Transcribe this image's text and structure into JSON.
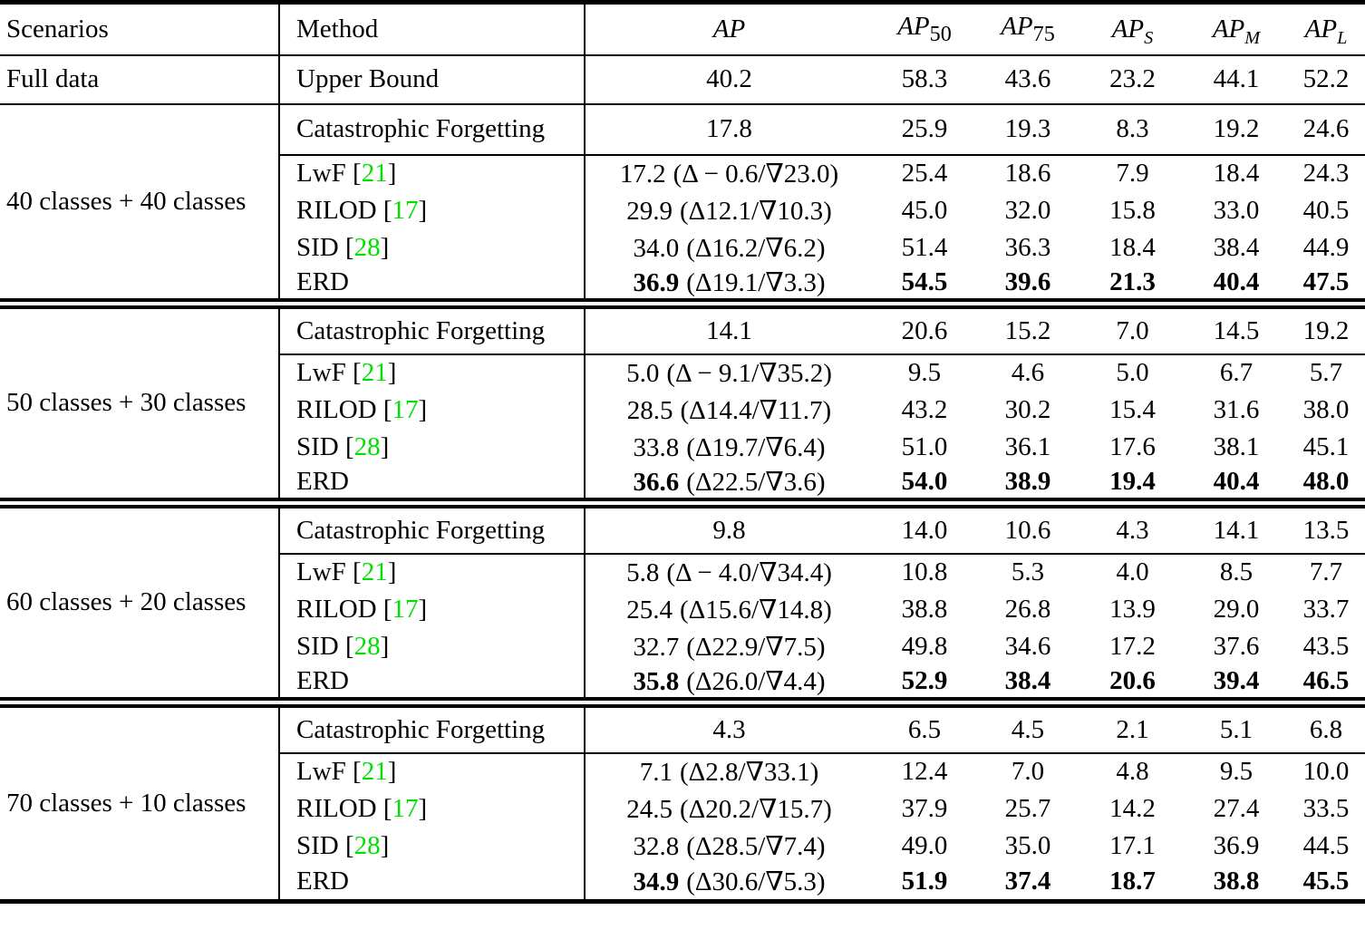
{
  "colors": {
    "citation": "#00e000",
    "text": "#000000",
    "background": "#ffffff"
  },
  "symbols": {
    "bracket_open": "[",
    "bracket_close": "]"
  },
  "header": {
    "scenarios": "Scenarios",
    "method": "Method",
    "metrics": [
      {
        "label": "AP",
        "sub": ""
      },
      {
        "label": "AP",
        "sub": "50"
      },
      {
        "label": "AP",
        "sub": "75"
      },
      {
        "label": "AP",
        "sub": "S"
      },
      {
        "label": "AP",
        "sub": "M"
      },
      {
        "label": "AP",
        "sub": "L"
      }
    ]
  },
  "full_data": {
    "scenario": "Full data",
    "method": "Upper Bound",
    "ap": "40.2",
    "values": [
      "58.3",
      "43.6",
      "23.2",
      "44.1",
      "52.2"
    ]
  },
  "blocks": [
    {
      "scenario": "40 classes + 40 classes",
      "cf": {
        "method": "Catastrophic Forgetting",
        "ap": "17.8",
        "values": [
          "25.9",
          "19.3",
          "8.3",
          "19.2",
          "24.6"
        ]
      },
      "rows": [
        {
          "method": "LwF",
          "cite": "21",
          "ap": "17.2",
          "note": "(Δ − 0.6/∇23.0)",
          "values": [
            "25.4",
            "18.6",
            "7.9",
            "18.4",
            "24.3"
          ]
        },
        {
          "method": "RILOD",
          "cite": "17",
          "ap": "29.9",
          "note": "(Δ12.1/∇10.3)",
          "values": [
            "45.0",
            "32.0",
            "15.8",
            "33.0",
            "40.5"
          ]
        },
        {
          "method": "SID",
          "cite": "28",
          "ap": "34.0",
          "note": "(Δ16.2/∇6.2)",
          "values": [
            "51.4",
            "36.3",
            "18.4",
            "38.4",
            "44.9"
          ]
        },
        {
          "method": "ERD",
          "ap": "36.9",
          "note": "(Δ19.1/∇3.3)",
          "values": [
            "54.5",
            "39.6",
            "21.3",
            "40.4",
            "47.5"
          ]
        }
      ]
    },
    {
      "scenario": "50 classes + 30 classes",
      "cf": {
        "method": "Catastrophic Forgetting",
        "ap": "14.1",
        "values": [
          "20.6",
          "15.2",
          "7.0",
          "14.5",
          "19.2"
        ]
      },
      "rows": [
        {
          "method": "LwF",
          "cite": "21",
          "ap": "5.0",
          "note": "(Δ − 9.1/∇35.2)",
          "values": [
            "9.5",
            "4.6",
            "5.0",
            "6.7",
            "5.7"
          ]
        },
        {
          "method": "RILOD",
          "cite": "17",
          "ap": "28.5",
          "note": "(Δ14.4/∇11.7)",
          "values": [
            "43.2",
            "30.2",
            "15.4",
            "31.6",
            "38.0"
          ]
        },
        {
          "method": "SID",
          "cite": "28",
          "ap": "33.8",
          "note": "(Δ19.7/∇6.4)",
          "values": [
            "51.0",
            "36.1",
            "17.6",
            "38.1",
            "45.1"
          ]
        },
        {
          "method": "ERD",
          "ap": "36.6",
          "note": "(Δ22.5/∇3.6)",
          "values": [
            "54.0",
            "38.9",
            "19.4",
            "40.4",
            "48.0"
          ]
        }
      ]
    },
    {
      "scenario": "60 classes + 20 classes",
      "cf": {
        "method": "Catastrophic Forgetting",
        "ap": "9.8",
        "values": [
          "14.0",
          "10.6",
          "4.3",
          "14.1",
          "13.5"
        ]
      },
      "rows": [
        {
          "method": "LwF",
          "cite": "21",
          "ap": "5.8",
          "note": "(Δ − 4.0/∇34.4)",
          "values": [
            "10.8",
            "5.3",
            "4.0",
            "8.5",
            "7.7"
          ]
        },
        {
          "method": "RILOD",
          "cite": "17",
          "ap": "25.4",
          "note": "(Δ15.6/∇14.8)",
          "values": [
            "38.8",
            "26.8",
            "13.9",
            "29.0",
            "33.7"
          ]
        },
        {
          "method": "SID",
          "cite": "28",
          "ap": "32.7",
          "note": "(Δ22.9/∇7.5)",
          "values": [
            "49.8",
            "34.6",
            "17.2",
            "37.6",
            "43.5"
          ]
        },
        {
          "method": "ERD",
          "ap": "35.8",
          "note": "(Δ26.0/∇4.4)",
          "values": [
            "52.9",
            "38.4",
            "20.6",
            "39.4",
            "46.5"
          ]
        }
      ]
    },
    {
      "scenario": "70 classes + 10 classes",
      "cf": {
        "method": "Catastrophic Forgetting",
        "ap": "4.3",
        "values": [
          "6.5",
          "4.5",
          "2.1",
          "5.1",
          "6.8"
        ]
      },
      "rows": [
        {
          "method": "LwF",
          "cite": "21",
          "ap": "7.1",
          "note": "(Δ2.8/∇33.1)",
          "values": [
            "12.4",
            "7.0",
            "4.8",
            "9.5",
            "10.0"
          ]
        },
        {
          "method": "RILOD",
          "cite": "17",
          "ap": "24.5",
          "note": "(Δ20.2/∇15.7)",
          "values": [
            "37.9",
            "25.7",
            "14.2",
            "27.4",
            "33.5"
          ]
        },
        {
          "method": "SID",
          "cite": "28",
          "ap": "32.8",
          "note": "(Δ28.5/∇7.4)",
          "values": [
            "49.0",
            "35.0",
            "17.1",
            "36.9",
            "44.5"
          ]
        },
        {
          "method": "ERD",
          "ap": "34.9",
          "note": "(Δ30.6/∇5.3)",
          "values": [
            "51.9",
            "37.4",
            "18.7",
            "38.8",
            "45.5"
          ]
        }
      ]
    }
  ]
}
